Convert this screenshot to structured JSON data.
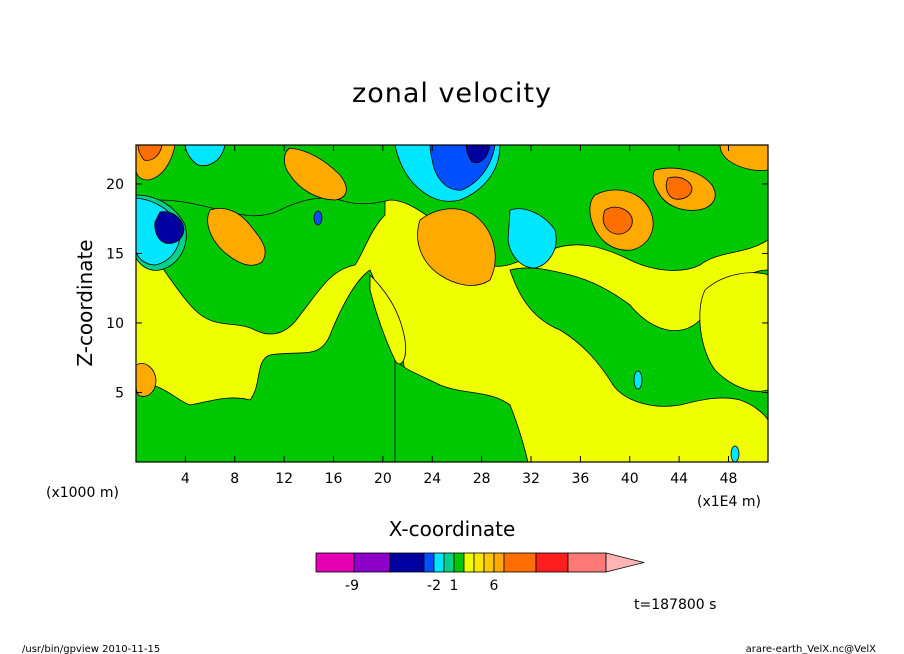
{
  "chart_data": {
    "type": "heatmap",
    "title": "zonal velocity",
    "xlabel": "X-coordinate",
    "ylabel": "Z-coordinate",
    "x_unit": "(x1E4 m)",
    "y_unit": "(x1000 m)",
    "x_ticks": [
      "4",
      "8",
      "12",
      "16",
      "20",
      "24",
      "28",
      "32",
      "36",
      "40",
      "44",
      "48"
    ],
    "x_tick_values": [
      4,
      8,
      12,
      16,
      20,
      24,
      28,
      32,
      36,
      40,
      44,
      48
    ],
    "y_ticks": [
      "5",
      "10",
      "15",
      "20"
    ],
    "y_tick_values": [
      5,
      10,
      15,
      20
    ],
    "xlim": [
      0,
      51.2
    ],
    "ylim": [
      0,
      22.8
    ],
    "colorbar": {
      "tick_labels": [
        "-9",
        "-2",
        "1",
        "6"
      ],
      "tick_values": [
        -9,
        -2,
        1,
        6
      ],
      "bins": [
        {
          "color": "#e600b4"
        },
        {
          "color": "#8c00c8"
        },
        {
          "color": "#0000a0"
        },
        {
          "color": "#0050ff"
        },
        {
          "color": "#00e6ff"
        },
        {
          "color": "#00d28c"
        },
        {
          "color": "#00c800"
        },
        {
          "color": "#f0ff00"
        },
        {
          "color": "#ffe600"
        },
        {
          "color": "#ffc800"
        },
        {
          "color": "#ffaa00"
        },
        {
          "color": "#ff6e00"
        },
        {
          "color": "#ff1e1e"
        },
        {
          "color": "#ff7878"
        },
        {
          "color": "#ffb4b4"
        }
      ]
    },
    "time_label": "t=187800 s"
  },
  "footer": {
    "left": "/usr/bin/gpview   2010-11-15",
    "right": "arare-earth_VelX.nc@VelX"
  }
}
